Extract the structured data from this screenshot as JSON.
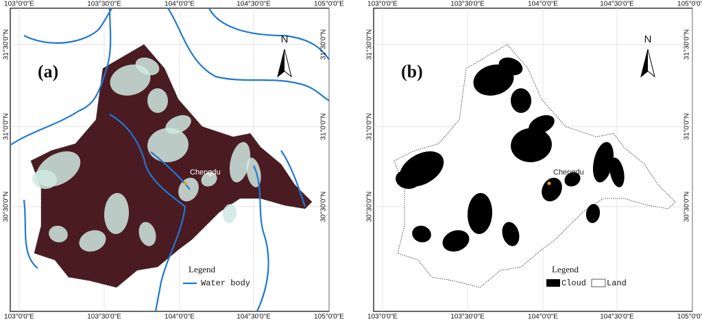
{
  "graticule": {
    "lon": [
      "103°0'0\"E",
      "103°30'0\"E",
      "104°0'0\"E",
      "104°30'0\"E",
      "105°0'0\"E"
    ],
    "lat": [
      "31°30'0\"N",
      "31°0'0\"N",
      "30°30'0\"N"
    ]
  },
  "north": "N",
  "panels": [
    {
      "label": "(a)",
      "city": "Chengdu",
      "legend": {
        "title": "Legend",
        "items": [
          "Water body"
        ]
      }
    },
    {
      "label": "(b)",
      "city": "Chengdu",
      "legend": {
        "title": "Legend",
        "items": [
          "Cloud",
          "Land"
        ]
      }
    }
  ]
}
